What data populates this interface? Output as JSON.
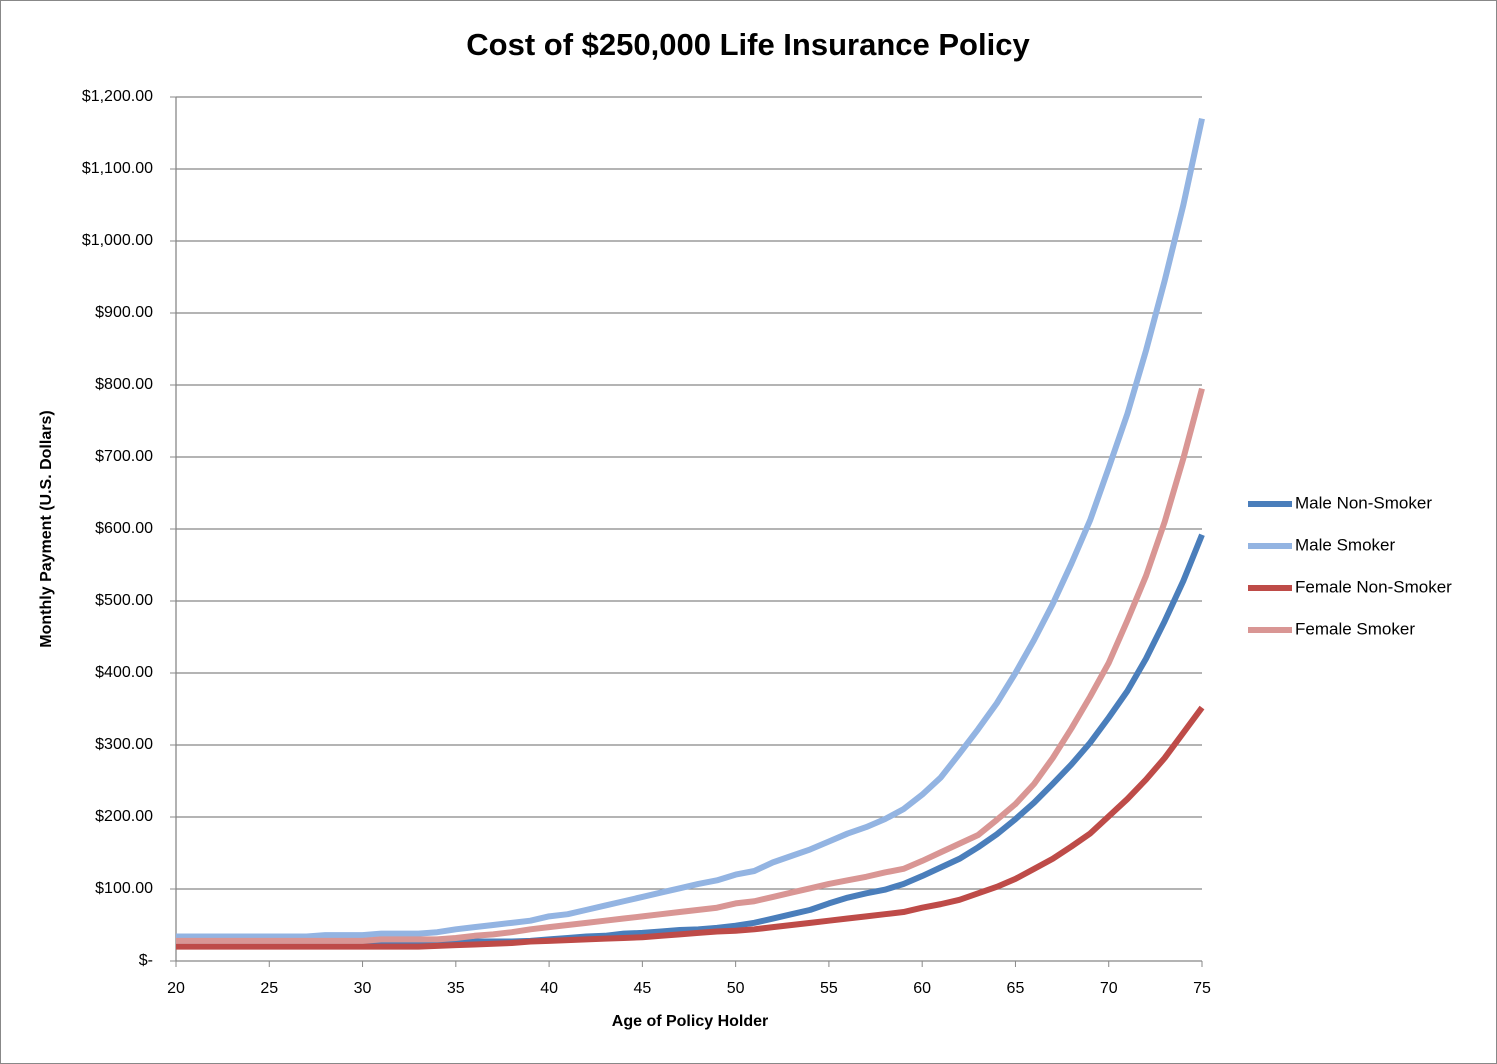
{
  "chart_data": {
    "type": "line",
    "title": "Cost of $250,000 Life Insurance Policy",
    "x_label": "Age of Policy Holder",
    "y_label": "Monthly Payment (U.S. Dollars)",
    "x": [
      20,
      21,
      22,
      23,
      24,
      25,
      26,
      27,
      28,
      29,
      30,
      31,
      32,
      33,
      34,
      35,
      36,
      37,
      38,
      39,
      40,
      41,
      42,
      43,
      44,
      45,
      46,
      47,
      48,
      49,
      50,
      51,
      52,
      53,
      54,
      55,
      56,
      57,
      58,
      59,
      60,
      61,
      62,
      63,
      64,
      65,
      66,
      67,
      68,
      69,
      70,
      71,
      72,
      73,
      74,
      75
    ],
    "series": [
      {
        "name": "Male Non-Smoker",
        "color": "#4a7ebb",
        "values": [
          22,
          22,
          22,
          22,
          22,
          22,
          22,
          22,
          22,
          22,
          22,
          23,
          23,
          23,
          24,
          25,
          27,
          27,
          27,
          28,
          30,
          32,
          34,
          35,
          38,
          39,
          41,
          43,
          44,
          46,
          49,
          53,
          59,
          65,
          71,
          80,
          88,
          94,
          99,
          107,
          118,
          130,
          142,
          158,
          176,
          197,
          220,
          246,
          273,
          303,
          338,
          375,
          420,
          472,
          528,
          592
        ]
      },
      {
        "name": "Male Smoker",
        "color": "#93b4e2",
        "values": [
          34,
          34,
          34,
          34,
          34,
          34,
          34,
          34,
          36,
          36,
          36,
          38,
          38,
          38,
          40,
          44,
          47,
          50,
          53,
          56,
          62,
          65,
          71,
          77,
          83,
          89,
          95,
          101,
          107,
          112,
          120,
          125,
          137,
          146,
          155,
          166,
          177,
          186,
          197,
          211,
          231,
          255,
          288,
          322,
          358,
          400,
          446,
          496,
          552,
          612,
          685,
          760,
          848,
          945,
          1050,
          1170
        ]
      },
      {
        "name": "Female Non-Smoker",
        "color": "#be4b48",
        "values": [
          20,
          20,
          20,
          20,
          20,
          20,
          20,
          20,
          20,
          20,
          20,
          20,
          20,
          20,
          21,
          22,
          23,
          24,
          25,
          27,
          28,
          29,
          30,
          31,
          32,
          33,
          35,
          37,
          39,
          41,
          42,
          44,
          47,
          50,
          53,
          56,
          59,
          62,
          65,
          68,
          74,
          79,
          85,
          94,
          103,
          114,
          128,
          142,
          159,
          177,
          201,
          225,
          252,
          282,
          317,
          352
        ]
      },
      {
        "name": "Female Smoker",
        "color": "#d99694",
        "values": [
          28,
          28,
          28,
          28,
          28,
          28,
          28,
          28,
          28,
          28,
          28,
          30,
          30,
          30,
          30,
          32,
          35,
          37,
          40,
          44,
          47,
          50,
          53,
          56,
          59,
          62,
          65,
          68,
          71,
          74,
          80,
          83,
          89,
          95,
          101,
          107,
          112,
          117,
          123,
          128,
          139,
          151,
          163,
          175,
          196,
          218,
          246,
          282,
          323,
          367,
          414,
          473,
          535,
          610,
          698,
          795
        ]
      }
    ],
    "xlim": [
      20,
      75
    ],
    "xticks": [
      20,
      25,
      30,
      35,
      40,
      45,
      50,
      55,
      60,
      65,
      70,
      75
    ],
    "ylim": [
      0,
      1200
    ],
    "yticks": [
      {
        "value": 0,
        "label": "$-"
      },
      {
        "value": 100,
        "label": "$100.00"
      },
      {
        "value": 200,
        "label": "$200.00"
      },
      {
        "value": 300,
        "label": "$300.00"
      },
      {
        "value": 400,
        "label": "$400.00"
      },
      {
        "value": 500,
        "label": "$500.00"
      },
      {
        "value": 600,
        "label": "$600.00"
      },
      {
        "value": 700,
        "label": "$700.00"
      },
      {
        "value": 800,
        "label": "$800.00"
      },
      {
        "value": 900,
        "label": "$900.00"
      },
      {
        "value": 1000,
        "label": "$1,000.00"
      },
      {
        "value": 1100,
        "label": "$1,100.00"
      },
      {
        "value": 1200,
        "label": "$1,200.00"
      }
    ],
    "grid": true,
    "legend": "right"
  }
}
